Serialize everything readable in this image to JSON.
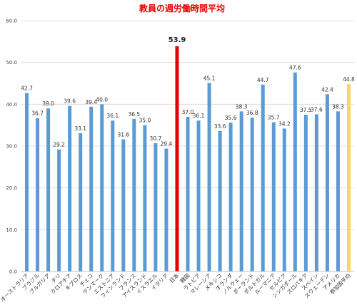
{
  "chart_data": {
    "type": "bar",
    "title": "教員の週労働時間平均",
    "xlabel": "",
    "ylabel": "",
    "ylim": [
      0,
      60
    ],
    "yticks": [
      "0.0",
      "10.0",
      "20.0",
      "30.0",
      "40.0",
      "50.0",
      "60.0"
    ],
    "grid": true,
    "legend": "none",
    "categories": [
      "オーストラリア",
      "ブラジル",
      "ブルガリア",
      "チリ",
      "クロアチア",
      "キプロス",
      "チェコ",
      "デンマーク",
      "エストニア",
      "フィンランド",
      "フランス",
      "アイスランド",
      "イスラエル",
      "イタリア",
      "日本",
      "韓国",
      "ラトビア",
      "マレーシア",
      "メキシコ",
      "オランダ",
      "ノルウェー",
      "ポーランド",
      "ポルトガル",
      "ルーマニア",
      "セルビア",
      "シンガポール",
      "スロバキア",
      "スペイン",
      "スウェーデン",
      "アメリカ",
      "参加国平均"
    ],
    "values": [
      42.7,
      36.7,
      39.0,
      29.2,
      39.6,
      33.1,
      39.4,
      40.0,
      36.1,
      31.6,
      36.5,
      35.0,
      30.7,
      29.4,
      53.9,
      37.0,
      36.1,
      45.1,
      33.6,
      35.6,
      38.3,
      36.8,
      44.7,
      35.7,
      34.2,
      47.6,
      37.5,
      37.6,
      42.4,
      38.3,
      44.8
    ],
    "value_labels": [
      "42.7",
      "36.7",
      "39.0",
      "29.2",
      "39.6",
      "33.1",
      "39.4",
      "40.0",
      "36.1",
      "31.6",
      "36.5",
      "35.0",
      "30.7",
      "29.4",
      "53.9",
      "37.0",
      "36.1",
      "45.1",
      "33.6",
      "35.6",
      "38.3",
      "36.8",
      "44.7",
      "35.7",
      "34.2",
      "47.6",
      "37.5",
      "37.6",
      "42.4",
      "38.3",
      "44.8"
    ],
    "colors": {
      "default": "#5b9bd5",
      "highlight": "#e60000",
      "average": "#f5d76e",
      "grid": "#d9d9d9",
      "axis": "#bfbfbf"
    },
    "highlight_index": 14,
    "average_index": 30
  }
}
